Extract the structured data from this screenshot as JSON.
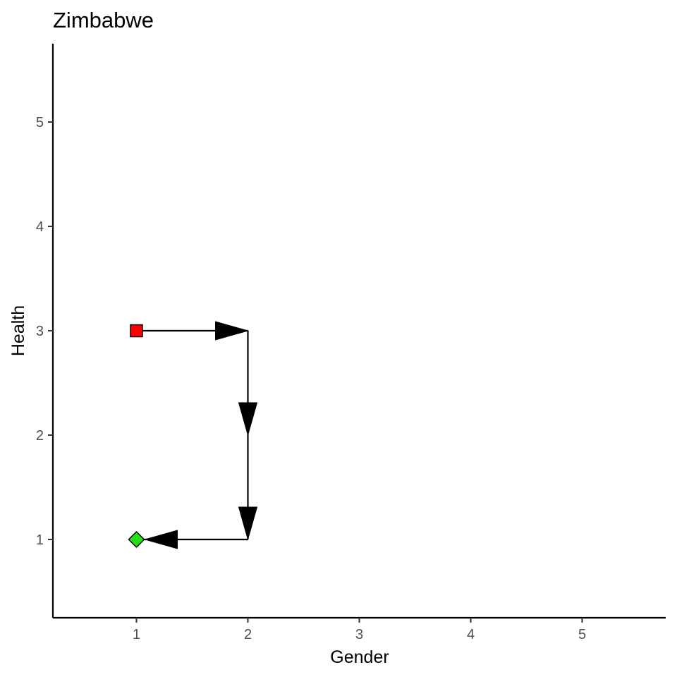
{
  "chart_data": {
    "type": "line",
    "title": "Zimbabwe",
    "xlabel": "Gender",
    "ylabel": "Health",
    "xlim": [
      0.25,
      5.75
    ],
    "ylim": [
      0.25,
      5.75
    ],
    "xticks": [
      1,
      2,
      3,
      4,
      5
    ],
    "yticks": [
      1,
      2,
      3,
      4,
      5
    ],
    "grid": false,
    "path": [
      {
        "x": 1,
        "y": 3
      },
      {
        "x": 2,
        "y": 3
      },
      {
        "x": 2,
        "y": 2
      },
      {
        "x": 2,
        "y": 1
      },
      {
        "x": 1,
        "y": 1
      }
    ],
    "markers": [
      {
        "x": 1,
        "y": 3,
        "shape": "square",
        "color": "#ff0000"
      },
      {
        "x": 1,
        "y": 1,
        "shape": "diamond",
        "color": "#22e012"
      }
    ]
  }
}
